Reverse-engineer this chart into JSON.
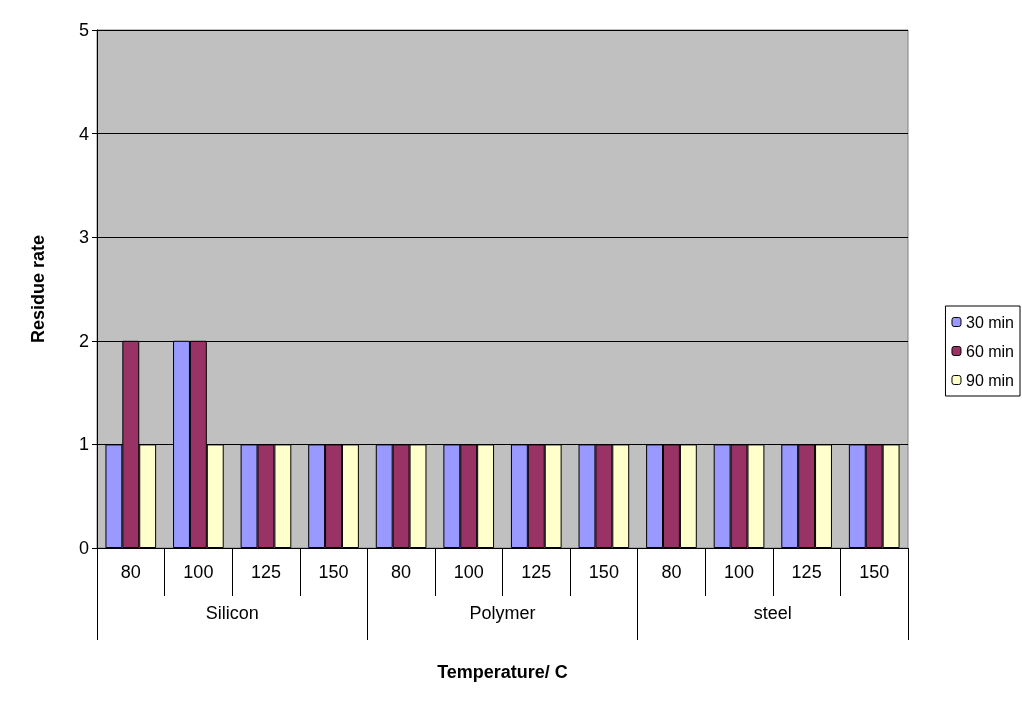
{
  "chart_data": {
    "type": "bar",
    "xlabel": "Temperature/ C",
    "ylabel": "Residue rate",
    "categories": [
      "80",
      "100",
      "125",
      "150",
      "80",
      "100",
      "125",
      "150",
      "80",
      "100",
      "125",
      "150"
    ],
    "annotations": [
      "Silicon",
      "Polymer",
      "steel"
    ],
    "series": [
      {
        "name": "30 min",
        "color": "#9999ff",
        "values": [
          1,
          2,
          1,
          1,
          1,
          1,
          1,
          1,
          1,
          1,
          1,
          1
        ]
      },
      {
        "name": "60 min",
        "color": "#993366",
        "values": [
          2,
          2,
          1,
          1,
          1,
          1,
          1,
          1,
          1,
          1,
          1,
          1
        ]
      },
      {
        "name": "90 min",
        "color": "#ffffcc",
        "values": [
          1,
          1,
          1,
          1,
          1,
          1,
          1,
          1,
          1,
          1,
          1,
          1
        ]
      }
    ],
    "ylim": [
      0,
      5
    ],
    "yticks": [
      0,
      1,
      2,
      3,
      4,
      5
    ],
    "grid": "y",
    "legend": "right"
  }
}
